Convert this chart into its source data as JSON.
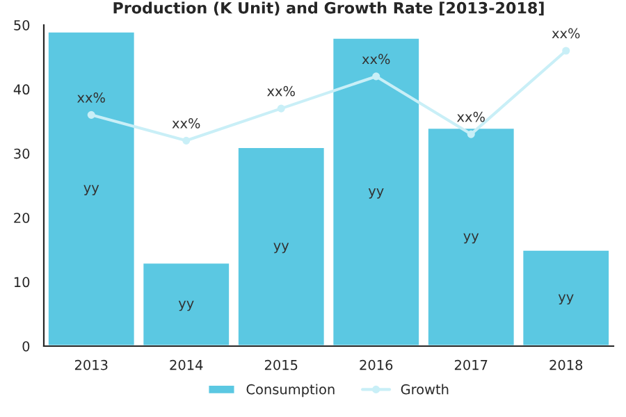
{
  "chart_data": {
    "type": "bar",
    "title": "Production (K Unit) and Growth Rate [2013-2018]",
    "categories": [
      "2013",
      "2014",
      "2015",
      "2016",
      "2017",
      "2018"
    ],
    "series": [
      {
        "name": "Consumption",
        "color": "#5bc8e2",
        "values": [
          49,
          13,
          31,
          48,
          34,
          15
        ],
        "value_labels": [
          "yy",
          "yy",
          "yy",
          "yy",
          "yy",
          "yy"
        ]
      },
      {
        "name": "Growth",
        "type": "line",
        "color": "#c9eff7",
        "values": [
          36,
          32,
          37,
          42,
          33,
          46
        ],
        "value_labels": [
          "xx%",
          "xx%",
          "xx%",
          "xx%",
          "xx%",
          "xx%"
        ]
      }
    ],
    "ylim": [
      0,
      50
    ],
    "yticks": [
      0,
      10,
      20,
      30,
      40,
      50
    ],
    "grid": false,
    "legend": "bottom",
    "marker": "circle"
  }
}
